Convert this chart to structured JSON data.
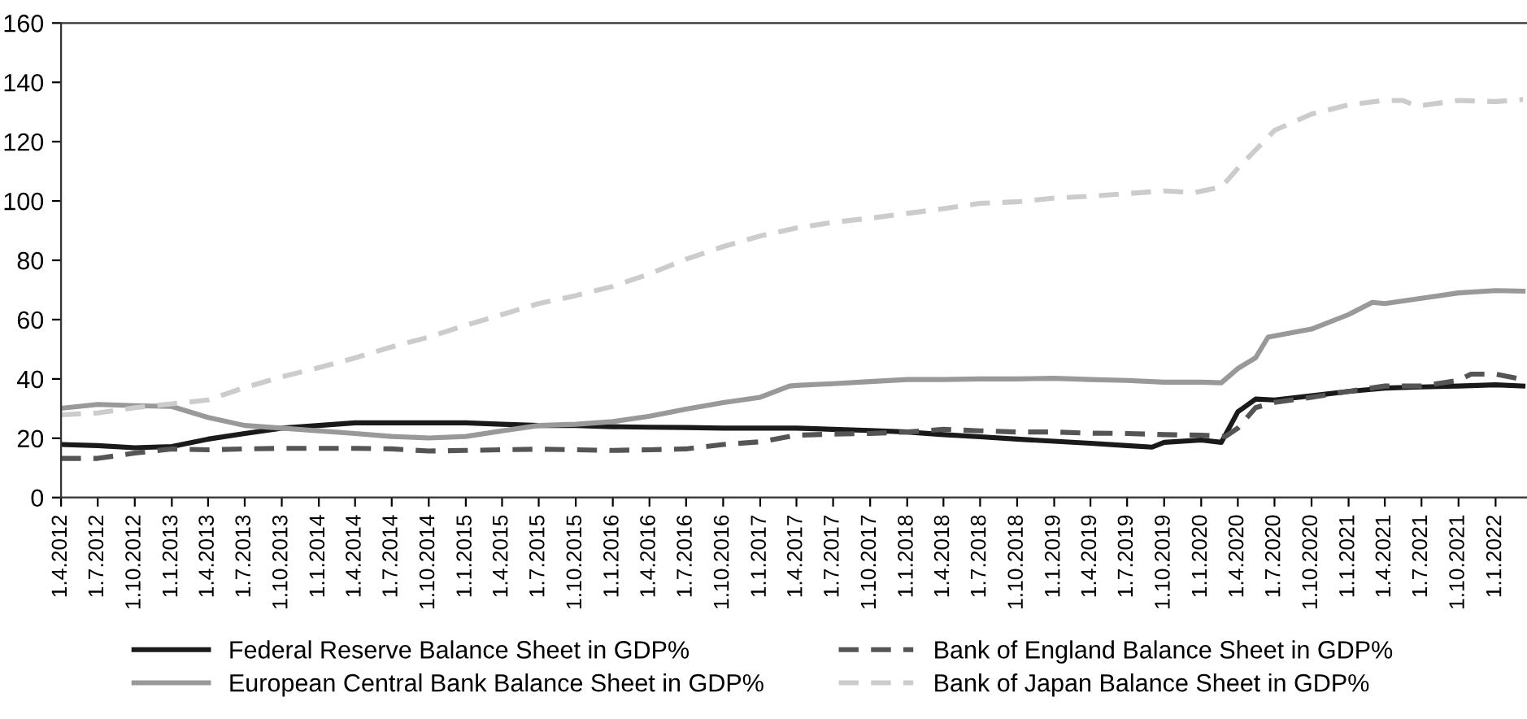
{
  "chart_data": {
    "type": "line",
    "ylim": [
      0,
      160
    ],
    "yticks": [
      0,
      20,
      40,
      60,
      80,
      100,
      120,
      140,
      160
    ],
    "xlim": [
      "2012-04-01",
      "2022-03-20"
    ],
    "xticks": [
      {
        "value": "2012-04-01",
        "label": "1.4.2012"
      },
      {
        "value": "2012-07-01",
        "label": "1.7.2012"
      },
      {
        "value": "2012-10-01",
        "label": "1.10.2012"
      },
      {
        "value": "2013-01-01",
        "label": "1.1.2013"
      },
      {
        "value": "2013-04-01",
        "label": "1.4.2013"
      },
      {
        "value": "2013-07-01",
        "label": "1.7.2013"
      },
      {
        "value": "2013-10-01",
        "label": "1.10.2013"
      },
      {
        "value": "2014-01-01",
        "label": "1.1.2014"
      },
      {
        "value": "2014-04-01",
        "label": "1.4.2014"
      },
      {
        "value": "2014-07-01",
        "label": "1.7.2014"
      },
      {
        "value": "2014-10-01",
        "label": "1.10.2014"
      },
      {
        "value": "2015-01-01",
        "label": "1.1.2015"
      },
      {
        "value": "2015-04-01",
        "label": "1.4.2015"
      },
      {
        "value": "2015-07-01",
        "label": "1.7.2015"
      },
      {
        "value": "2015-10-01",
        "label": "1.10.2015"
      },
      {
        "value": "2016-01-01",
        "label": "1.1.2016"
      },
      {
        "value": "2016-04-01",
        "label": "1.4.2016"
      },
      {
        "value": "2016-07-01",
        "label": "1.7.2016"
      },
      {
        "value": "2016-10-01",
        "label": "1.10.2016"
      },
      {
        "value": "2017-01-01",
        "label": "1.1.2017"
      },
      {
        "value": "2017-04-01",
        "label": "1.4.2017"
      },
      {
        "value": "2017-07-01",
        "label": "1.7.2017"
      },
      {
        "value": "2017-10-01",
        "label": "1.10.2017"
      },
      {
        "value": "2018-01-01",
        "label": "1.1.2018"
      },
      {
        "value": "2018-04-01",
        "label": "1.4.2018"
      },
      {
        "value": "2018-07-01",
        "label": "1.7.2018"
      },
      {
        "value": "2018-10-01",
        "label": "1.10.2018"
      },
      {
        "value": "2019-01-01",
        "label": "1.1.2019"
      },
      {
        "value": "2019-04-01",
        "label": "1.4.2019"
      },
      {
        "value": "2019-07-01",
        "label": "1.7.2019"
      },
      {
        "value": "2019-10-01",
        "label": "1.10.2019"
      },
      {
        "value": "2020-01-01",
        "label": "1.1.2020"
      },
      {
        "value": "2020-04-01",
        "label": "1.4.2020"
      },
      {
        "value": "2020-07-01",
        "label": "1.7.2020"
      },
      {
        "value": "2020-10-01",
        "label": "1.10.2020"
      },
      {
        "value": "2021-01-01",
        "label": "1.1.2021"
      },
      {
        "value": "2021-04-01",
        "label": "1.4.2021"
      },
      {
        "value": "2021-07-01",
        "label": "1.7.2021"
      },
      {
        "value": "2021-10-01",
        "label": "1.10.2021"
      },
      {
        "value": "2022-01-01",
        "label": "1.1.2022"
      }
    ],
    "grid": false,
    "legend": "bottom",
    "marker": "none",
    "series": [
      {
        "name": "Federal Reserve Balance Sheet in GDP%",
        "color": "#1a1a1a",
        "line_style": "solid",
        "x": [
          "2012-04-01",
          "2012-07-01",
          "2012-10-01",
          "2013-01-01",
          "2013-04-01",
          "2013-07-01",
          "2013-10-01",
          "2014-01-01",
          "2014-04-01",
          "2014-07-01",
          "2014-10-01",
          "2015-01-01",
          "2015-04-01",
          "2015-07-01",
          "2015-10-01",
          "2016-01-01",
          "2016-04-01",
          "2016-07-01",
          "2016-10-01",
          "2017-01-01",
          "2017-04-01",
          "2017-07-01",
          "2017-10-01",
          "2018-01-01",
          "2018-04-01",
          "2018-07-01",
          "2018-10-01",
          "2019-01-01",
          "2019-04-01",
          "2019-07-01",
          "2019-09-01",
          "2019-10-01",
          "2020-01-01",
          "2020-02-20",
          "2020-04-01",
          "2020-05-15",
          "2020-07-01",
          "2020-10-01",
          "2021-01-01",
          "2021-04-01",
          "2021-07-01",
          "2021-10-01",
          "2022-01-01",
          "2022-03-10"
        ],
        "values": [
          17.9,
          17.5,
          16.8,
          17.2,
          19.7,
          21.6,
          23.4,
          24.3,
          25.2,
          25.2,
          25.2,
          25.2,
          24.7,
          24.3,
          24.3,
          23.9,
          23.7,
          23.6,
          23.4,
          23.4,
          23.4,
          23,
          22.6,
          22.1,
          21.2,
          20.5,
          19.7,
          19,
          18.3,
          17.5,
          17,
          18.6,
          19.4,
          18.6,
          28.9,
          33.2,
          32.9,
          34.3,
          35.8,
          36.9,
          37.3,
          37.6,
          38,
          37.6
        ]
      },
      {
        "name": "Bank of England Balance Sheet in GDP%",
        "color": "#555555",
        "line_style": "dashed",
        "x": [
          "2012-04-01",
          "2012-07-01",
          "2012-10-01",
          "2013-01-01",
          "2013-04-01",
          "2013-07-01",
          "2013-10-01",
          "2014-01-01",
          "2014-04-01",
          "2014-07-01",
          "2014-10-01",
          "2015-01-01",
          "2015-04-01",
          "2015-07-01",
          "2015-10-01",
          "2016-01-01",
          "2016-04-01",
          "2016-07-01",
          "2016-10-01",
          "2017-01-01",
          "2017-04-01",
          "2017-07-01",
          "2017-10-01",
          "2018-01-01",
          "2018-04-01",
          "2018-07-01",
          "2018-10-01",
          "2019-01-01",
          "2019-04-01",
          "2019-07-01",
          "2019-10-01",
          "2020-01-01",
          "2020-03-01",
          "2020-04-01",
          "2020-05-15",
          "2020-07-01",
          "2020-10-01",
          "2021-01-01",
          "2021-04-01",
          "2021-07-01",
          "2021-10-01",
          "2021-11-01",
          "2022-01-01",
          "2022-03-10"
        ],
        "values": [
          13.2,
          13.2,
          15,
          16.4,
          16.1,
          16.4,
          16.6,
          16.6,
          16.6,
          16.4,
          15.7,
          15.9,
          16.1,
          16.3,
          16.1,
          15.9,
          16.1,
          16.4,
          17.9,
          18.8,
          21,
          21.4,
          21.6,
          22.1,
          23,
          22.5,
          22.1,
          22.1,
          21.7,
          21.6,
          21.2,
          21,
          20.6,
          23.4,
          30.3,
          32.1,
          33.8,
          35.8,
          37.6,
          37.6,
          39.5,
          41.6,
          41.6,
          39.8
        ]
      },
      {
        "name": "European Central Bank Balance Sheet in GDP%",
        "color": "#999999",
        "line_style": "solid",
        "x": [
          "2012-04-01",
          "2012-07-01",
          "2012-10-01",
          "2013-01-01",
          "2013-04-01",
          "2013-07-01",
          "2013-10-01",
          "2014-01-01",
          "2014-04-01",
          "2014-07-01",
          "2014-10-01",
          "2015-01-01",
          "2015-04-01",
          "2015-07-01",
          "2015-10-01",
          "2016-01-01",
          "2016-04-01",
          "2016-07-01",
          "2016-10-01",
          "2017-01-01",
          "2017-03-15",
          "2017-04-01",
          "2017-07-01",
          "2017-10-01",
          "2018-01-01",
          "2018-04-01",
          "2018-07-01",
          "2018-10-01",
          "2019-01-01",
          "2019-04-01",
          "2019-07-01",
          "2019-10-01",
          "2020-01-01",
          "2020-02-20",
          "2020-04-01",
          "2020-05-15",
          "2020-06-15",
          "2020-10-01",
          "2021-01-01",
          "2021-03-01",
          "2021-04-01",
          "2021-07-01",
          "2021-10-01",
          "2022-01-01",
          "2022-03-10"
        ],
        "values": [
          30.1,
          31.4,
          31,
          30.7,
          27,
          24.3,
          23.4,
          22.5,
          21.6,
          20.6,
          20.1,
          20.6,
          22.5,
          24.3,
          24.7,
          25.6,
          27.4,
          29.8,
          32,
          33.8,
          37.6,
          37.8,
          38.4,
          39.1,
          39.8,
          39.8,
          40,
          40,
          40.2,
          39.8,
          39.5,
          38.9,
          38.9,
          38.7,
          43.5,
          47.1,
          54.1,
          56.8,
          61.7,
          65.8,
          65.4,
          67.2,
          69,
          69.8,
          69.6
        ]
      },
      {
        "name": "Bank of Japan Balance Sheet in GDP%",
        "color": "#cccccc",
        "line_style": "dashed",
        "x": [
          "2012-04-01",
          "2012-07-01",
          "2012-10-01",
          "2013-01-01",
          "2013-04-01",
          "2013-07-01",
          "2013-10-01",
          "2014-01-01",
          "2014-04-01",
          "2014-07-01",
          "2014-10-01",
          "2015-01-01",
          "2015-04-01",
          "2015-07-01",
          "2015-10-01",
          "2016-01-01",
          "2016-04-01",
          "2016-07-01",
          "2016-10-01",
          "2017-01-01",
          "2017-04-01",
          "2017-07-01",
          "2017-10-01",
          "2018-01-01",
          "2018-04-01",
          "2018-07-01",
          "2018-10-01",
          "2019-01-01",
          "2019-04-01",
          "2019-07-01",
          "2019-10-01",
          "2019-12-15",
          "2020-02-20",
          "2020-04-01",
          "2020-07-01",
          "2020-10-01",
          "2021-01-01",
          "2021-04-01",
          "2021-05-15",
          "2021-06-20",
          "2021-10-01",
          "2022-01-01",
          "2022-03-10"
        ],
        "values": [
          27.9,
          28.5,
          30.3,
          31.6,
          32.9,
          37.1,
          40.7,
          43.8,
          47.1,
          50.8,
          54.1,
          58.1,
          61.7,
          65.4,
          68.1,
          71.2,
          75.4,
          80.4,
          84.6,
          88.2,
          90.9,
          92.8,
          94.2,
          95.8,
          97.4,
          99.2,
          99.7,
          101,
          101.6,
          102.5,
          103.4,
          102.8,
          104.7,
          111,
          123.8,
          129.3,
          132.4,
          133.9,
          133.9,
          132,
          133.9,
          133.5,
          134.2
        ]
      }
    ]
  }
}
